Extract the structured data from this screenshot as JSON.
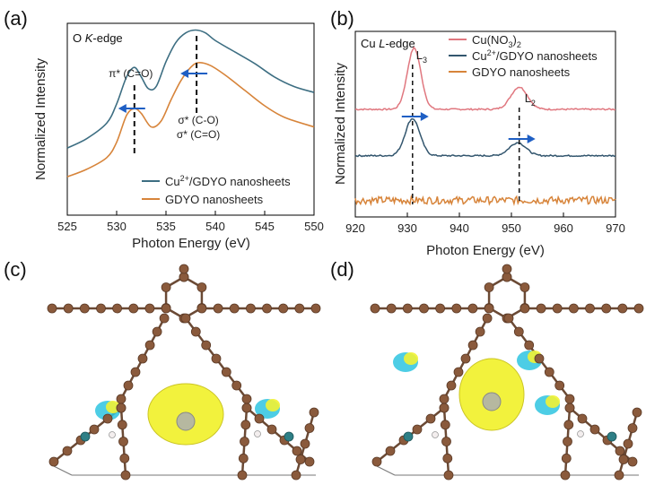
{
  "panels": {
    "a": {
      "letter": "(a)",
      "edge_prefix": "O ",
      "edge_italic": "K",
      "edge_suffix": "-edge"
    },
    "b": {
      "letter": "(b)",
      "edge_prefix": "Cu ",
      "edge_italic": "L",
      "edge_suffix": "-edge"
    },
    "c": {
      "letter": "(c)"
    },
    "d": {
      "letter": "(d)"
    }
  },
  "chart_data": [
    {
      "id": "a",
      "type": "line",
      "xlabel": "Photon Energy (eV)",
      "ylabel": "Normalized Intensity",
      "xlim": [
        525,
        550
      ],
      "xticks": [
        "525",
        "530",
        "535",
        "540",
        "545",
        "550"
      ],
      "xtick_values": [
        525,
        530,
        535,
        540,
        545,
        550
      ],
      "y_ticks_shown": false,
      "grid": false,
      "legend_position": "bottom-right",
      "series": [
        {
          "name": "Cu2+/GDYO nanosheets",
          "legend_main": "Cu",
          "legend_sup": "2+",
          "legend_rest": "/GDYO nanosheets",
          "color": "#3d6e82",
          "x": [
            525,
            527,
            529,
            530,
            531,
            531.8,
            532.5,
            533.2,
            534,
            535,
            536,
            537,
            538,
            539,
            540,
            542,
            544,
            546,
            548,
            550
          ],
          "y": [
            0.35,
            0.4,
            0.48,
            0.58,
            0.72,
            0.77,
            0.72,
            0.66,
            0.67,
            0.8,
            0.9,
            0.95,
            0.965,
            0.95,
            0.91,
            0.85,
            0.79,
            0.72,
            0.67,
            0.64
          ]
        },
        {
          "name": "GDYO nanosheets",
          "legend_main": "GDYO nanosheets",
          "color": "#d7843a",
          "x": [
            525,
            527,
            529,
            530,
            531,
            531.8,
            532.5,
            533.5,
            534.5,
            535.5,
            536.5,
            537.5,
            538.3,
            539.5,
            541,
            543,
            545,
            547,
            550
          ],
          "y": [
            0.2,
            0.24,
            0.3,
            0.38,
            0.52,
            0.555,
            0.53,
            0.46,
            0.49,
            0.6,
            0.7,
            0.77,
            0.795,
            0.78,
            0.73,
            0.65,
            0.57,
            0.51,
            0.46
          ]
        }
      ],
      "markers": [
        {
          "x": 531.8,
          "label": "π* (C=O)"
        },
        {
          "x": 538.1,
          "label_lines": [
            "σ* (C-O)",
            "σ* (C=O)"
          ]
        }
      ],
      "arrows": [
        {
          "at_x": 531.8,
          "direction": "left",
          "color": "#1f5fc4"
        },
        {
          "at_x": 538.1,
          "direction": "left",
          "color": "#1f5fc4"
        }
      ]
    },
    {
      "id": "b",
      "type": "line",
      "xlabel": "Photon Energy (eV)",
      "ylabel": "Normalized Intensity",
      "xlim": [
        920,
        970
      ],
      "xticks": [
        "920",
        "930",
        "940",
        "950",
        "960",
        "970"
      ],
      "xtick_values": [
        920,
        930,
        940,
        950,
        960,
        970
      ],
      "y_ticks_shown": false,
      "grid": false,
      "legend_position": "top-right",
      "series": [
        {
          "name": "Cu(NO3)2",
          "legend_main": "Cu(NO",
          "legend_sub": "3",
          "legend_close": ")",
          "legend_sub2": "2",
          "color": "#e0777f",
          "baseline": 0.58,
          "peaks": [
            {
              "x": 931.3,
              "height": 0.33,
              "width": 1.3
            },
            {
              "x": 951.5,
              "height": 0.12,
              "width": 1.6
            }
          ],
          "noise": 0.004
        },
        {
          "name": "Cu2+/GDYO nanosheets",
          "legend_main": "Cu",
          "legend_sup": "2+",
          "legend_rest": "/GDYO nanosheets",
          "color": "#33566e",
          "baseline": 0.33,
          "peaks": [
            {
              "x": 931.0,
              "height": 0.2,
              "width": 1.4
            },
            {
              "x": 951.2,
              "height": 0.07,
              "width": 1.6
            }
          ],
          "noise": 0.004
        },
        {
          "name": "GDYO nanosheets",
          "legend_main": "GDYO nanosheets",
          "color": "#d7843a",
          "baseline": 0.09,
          "peaks": [],
          "noise": 0.02
        }
      ],
      "markers": [
        {
          "x": 931.0,
          "label": "L",
          "sub": "3"
        },
        {
          "x": 951.5,
          "label": "L",
          "sub": "2"
        }
      ],
      "arrows": [
        {
          "at_x": 931.0,
          "direction": "right",
          "color": "#1f5fc4"
        },
        {
          "at_x": 951.5,
          "direction": "right",
          "color": "#1f5fc4"
        }
      ]
    }
  ],
  "structures": {
    "c": {
      "atom_color": "#8a5a3c",
      "gdy_count": 1,
      "lobe_color": "#f2f233",
      "alt_lobe_color": "#2ec4e0"
    },
    "d": {
      "atom_color": "#8a5a3c",
      "gdy_count": 1,
      "lobe_color": "#f2f233",
      "alt_lobe_color": "#2ec4e0"
    }
  }
}
